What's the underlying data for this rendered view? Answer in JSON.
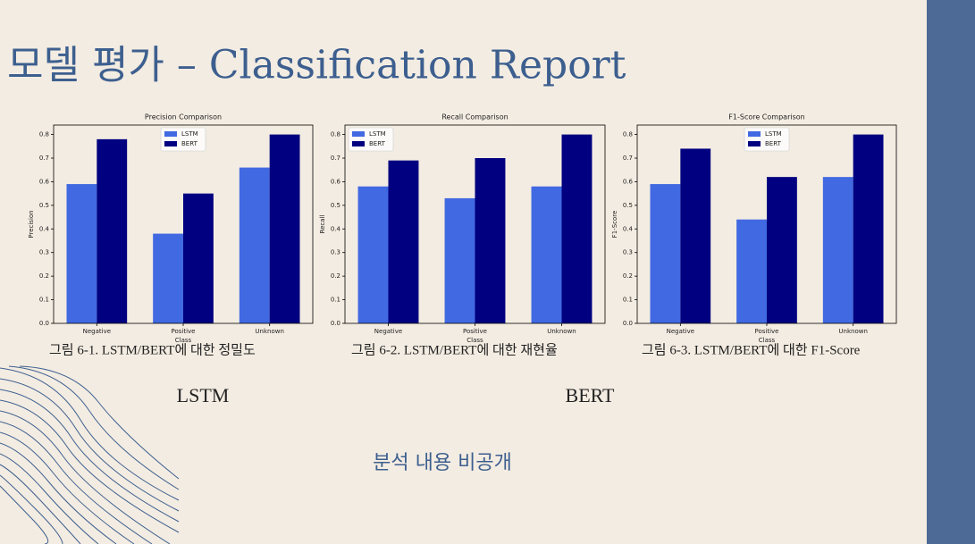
{
  "title": "모델 평가 – Classification Report",
  "chart_data": [
    {
      "type": "bar",
      "title": "Precision Comparison",
      "x_label": "Class",
      "y_label": "Precision",
      "categories": [
        "Negative",
        "Positive",
        "Unknown"
      ],
      "series": [
        {
          "name": "LSTM",
          "color": "#4169e1",
          "values": [
            0.59,
            0.38,
            0.66
          ]
        },
        {
          "name": "BERT",
          "color": "#000080",
          "values": [
            0.78,
            0.55,
            0.8
          ]
        }
      ],
      "ylim": [
        0,
        0.84
      ],
      "yticks": [
        {
          "value": 0,
          "label": "0.0"
        },
        0.1,
        0.2,
        0.3,
        0.4,
        0.5,
        0.6,
        0.7,
        0.8
      ],
      "legend": "upper center"
    },
    {
      "type": "bar",
      "title": "Recall Comparison",
      "x_label": "Class",
      "y_label": "Recall",
      "categories": [
        "Negative",
        "Positive",
        "Unknown"
      ],
      "series": [
        {
          "name": "LSTM",
          "color": "#4169e1",
          "values": [
            0.58,
            0.53,
            0.58
          ]
        },
        {
          "name": "BERT",
          "color": "#000080",
          "values": [
            0.69,
            0.7,
            0.8
          ]
        }
      ],
      "ylim": [
        0,
        0.84
      ],
      "yticks": [
        {
          "value": 0,
          "label": "0.0"
        },
        0.1,
        0.2,
        0.3,
        0.4,
        0.5,
        0.6,
        0.7,
        0.8
      ],
      "legend": "upper left"
    },
    {
      "type": "bar",
      "title": "F1-Score Comparison",
      "x_label": "Class",
      "y_label": "F1-Score",
      "categories": [
        "Negative",
        "Positive",
        "Unknown"
      ],
      "series": [
        {
          "name": "LSTM",
          "color": "#4169e1",
          "values": [
            0.59,
            0.44,
            0.62
          ]
        },
        {
          "name": "BERT",
          "color": "#000080",
          "values": [
            0.74,
            0.62,
            0.8
          ]
        }
      ],
      "ylim": [
        0,
        0.84
      ],
      "yticks": [
        {
          "value": 0,
          "label": "0.0"
        },
        0.1,
        0.2,
        0.3,
        0.4,
        0.5,
        0.6,
        0.7,
        0.8
      ],
      "legend": "upper center"
    }
  ],
  "captions": [
    "그림 6-1. LSTM/BERT에 대한 정밀도",
    "그림 6-2. LSTM/BERT에 대한 재현율",
    "그림 6-3. LSTM/BERT에 대한 F1-Score"
  ],
  "models": [
    "LSTM",
    "BERT"
  ],
  "note": "분석 내용 비공개"
}
